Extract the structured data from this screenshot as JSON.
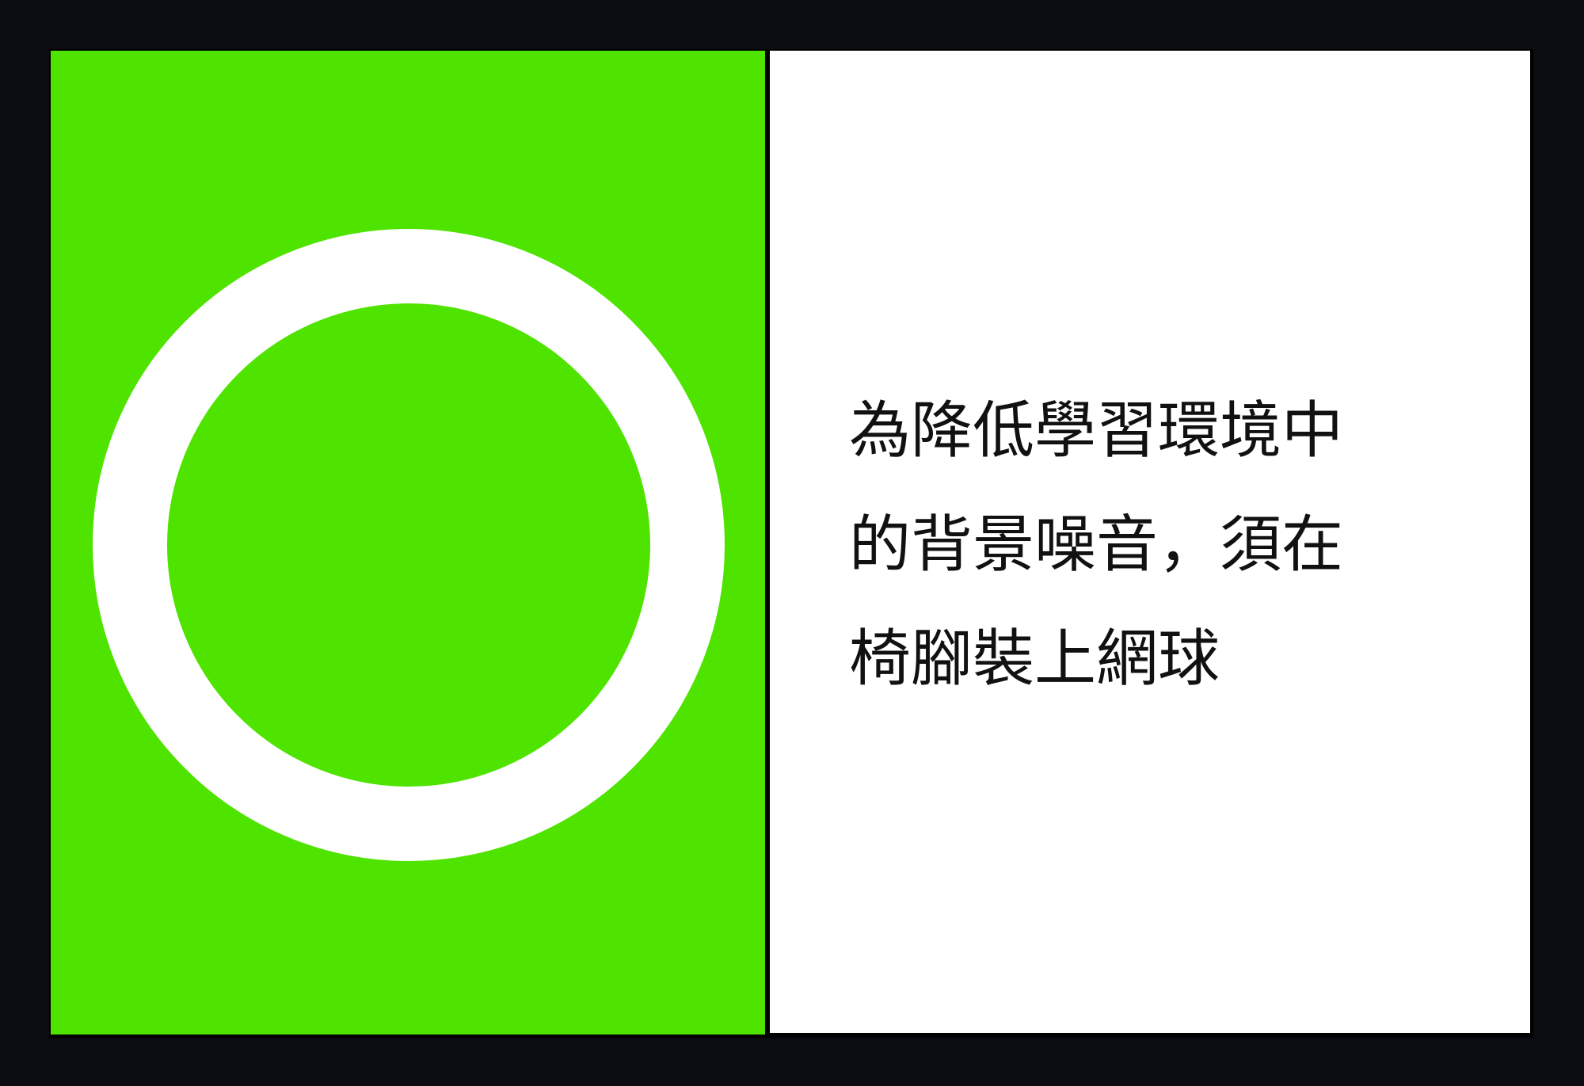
{
  "card": {
    "symbol": {
      "type": "circle",
      "meaning": "correct",
      "colors": {
        "background": "#4fe300",
        "ring": "#ffffff"
      }
    },
    "statement_lines": [
      "為降低學習環境中",
      "的背景噪音，須在",
      "椅腳裝上網球"
    ],
    "colors": {
      "frame": "#0b0b12",
      "text": "#111111",
      "text_panel": "#ffffff"
    }
  }
}
